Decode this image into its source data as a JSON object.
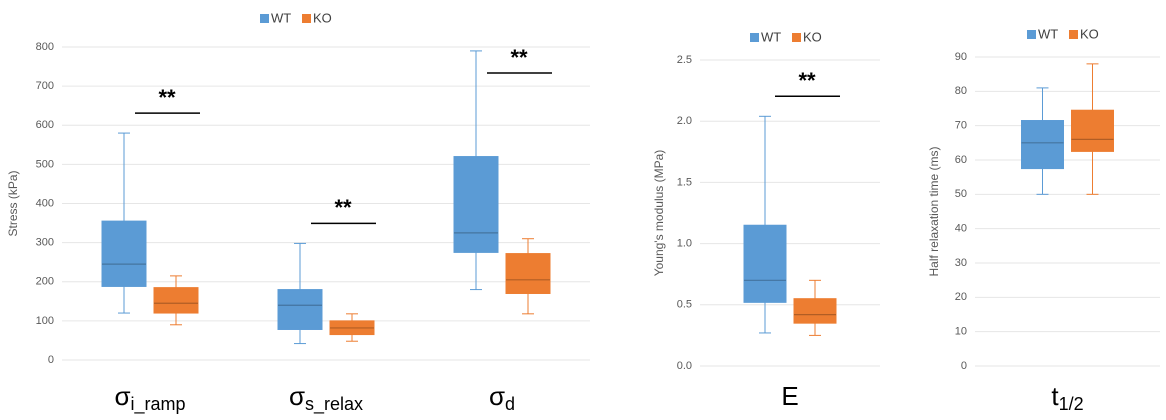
{
  "chart_data": [
    {
      "type": "box",
      "y_label": "Stress (kPa)",
      "categories": [
        "σi_ramp",
        "σs_relax",
        "σd"
      ],
      "ylim": [
        0,
        800
      ],
      "yticks": [
        0,
        100,
        200,
        300,
        400,
        500,
        600,
        700,
        800
      ],
      "grid": true,
      "annotations": [
        "**",
        "**",
        "**"
      ],
      "series": [
        {
          "name": "WT",
          "color": "#5b9bd5",
          "min": [
            120,
            42,
            180
          ],
          "q1": [
            188,
            78,
            275
          ],
          "median": [
            245,
            140,
            325
          ],
          "q3": [
            355,
            180,
            520
          ],
          "max": [
            580,
            298,
            790
          ]
        },
        {
          "name": "KO",
          "color": "#ed7d31",
          "min": [
            90,
            48,
            118
          ],
          "q1": [
            120,
            65,
            170
          ],
          "median": [
            145,
            82,
            205
          ],
          "q3": [
            185,
            100,
            272
          ],
          "max": [
            215,
            118,
            310
          ]
        }
      ]
    },
    {
      "type": "box",
      "y_label": "Young's modulus (MPa)",
      "categories": [
        "E"
      ],
      "ylim": [
        0,
        2.5
      ],
      "yticks": [
        {
          "value": 0,
          "label": "0.0"
        },
        0.5,
        {
          "value": 1,
          "label": "1.0"
        },
        1.5,
        {
          "value": 2,
          "label": "2.0"
        },
        2.5
      ],
      "grid": true,
      "annotations": [
        "**"
      ],
      "series": [
        {
          "name": "WT",
          "color": "#5b9bd5",
          "min": [
            0.27
          ],
          "q1": [
            0.52
          ],
          "median": [
            0.7
          ],
          "q3": [
            1.15
          ],
          "max": [
            2.04
          ]
        },
        {
          "name": "KO",
          "color": "#ed7d31",
          "min": [
            0.25
          ],
          "q1": [
            0.35
          ],
          "median": [
            0.42
          ],
          "q3": [
            0.55
          ],
          "max": [
            0.7
          ]
        }
      ]
    },
    {
      "type": "box",
      "y_label": "Half relaxation time (ms)",
      "categories": [
        "t1/2"
      ],
      "ylim": [
        0,
        90
      ],
      "yticks": [
        0,
        10,
        20,
        30,
        40,
        50,
        60,
        70,
        80,
        90
      ],
      "grid": true,
      "series": [
        {
          "name": "WT",
          "color": "#5b9bd5",
          "min": [
            50
          ],
          "q1": [
            57.5
          ],
          "median": [
            65
          ],
          "q3": [
            71.5
          ],
          "max": [
            81
          ]
        },
        {
          "name": "KO",
          "color": "#ed7d31",
          "min": [
            50
          ],
          "q1": [
            62.5
          ],
          "median": [
            66
          ],
          "q3": [
            74.5
          ],
          "max": [
            88
          ]
        }
      ]
    }
  ]
}
